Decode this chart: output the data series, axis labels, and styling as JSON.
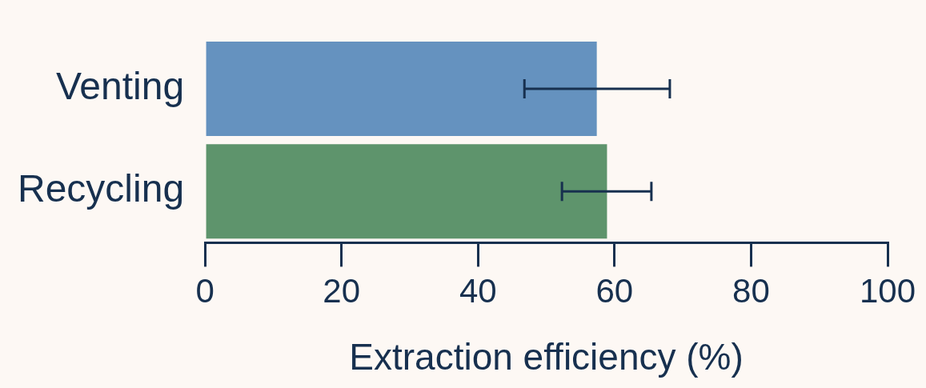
{
  "chart_data": {
    "type": "bar",
    "orientation": "horizontal",
    "categories": [
      "Venting",
      "Recycling"
    ],
    "values": [
      57.4,
      58.9
    ],
    "colors": [
      "#6592bf",
      "#5e946c"
    ],
    "errors": [
      [
        46.8,
        68.1
      ],
      [
        52.3,
        65.4
      ]
    ],
    "xlabel": "Extraction efficiency (%)",
    "xlim": [
      0,
      100
    ],
    "xticks": [
      0,
      20,
      40,
      60,
      80,
      100
    ],
    "grid": false,
    "legend": false
  }
}
